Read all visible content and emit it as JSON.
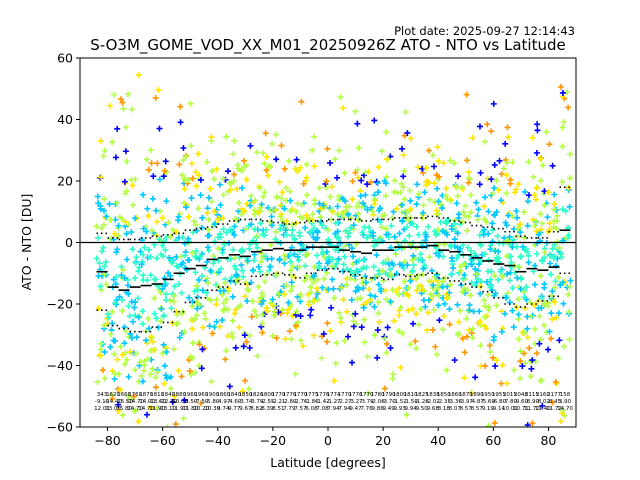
{
  "chart_data": {
    "type": "scatter",
    "title": "S-O3M_GOME_VOD_XX_M01_20250926Z ATO - NTO vs Latitude",
    "plot_date": "Plot date: 2025-09-27 12:14:43",
    "xlabel": "Latitude [degrees]",
    "ylabel": "ATO - NTO [DU]",
    "xlim": [
      -90,
      90
    ],
    "ylim": [
      -60,
      60
    ],
    "xticks": [
      -80,
      -60,
      -40,
      -20,
      0,
      20,
      40,
      60,
      80
    ],
    "yticks": [
      -60,
      -40,
      -20,
      0,
      20,
      40,
      60
    ],
    "zero_line": 0,
    "colors": {
      "very_dense": "#0000ff",
      "dense": "#00c8ff",
      "medium": "#2dffc8",
      "light": "#b4ff46",
      "sparse": "#ffe600",
      "outlier": "#ff9600",
      "median": "#000000",
      "axis": "#000000"
    },
    "bins": {
      "lat": [
        -84,
        -80,
        -76,
        -72,
        -68,
        -64,
        -60,
        -56,
        -52,
        -48,
        -44,
        -40,
        -36,
        -32,
        -28,
        -24,
        -20,
        -16,
        -12,
        -8,
        -4,
        0,
        4,
        8,
        12,
        16,
        20,
        24,
        28,
        32,
        36,
        40,
        44,
        48,
        52,
        56,
        60,
        64,
        68,
        72,
        76,
        80,
        84,
        88
      ],
      "median": [
        -9.5,
        -14.5,
        -15.5,
        -14.5,
        -14,
        -13.5,
        -12,
        -10,
        -8.5,
        -7.5,
        -5.5,
        -5,
        -4,
        -4.5,
        -3,
        -2.5,
        -2,
        -2.5,
        -2.5,
        -1.5,
        -1.5,
        -1.5,
        -2.5,
        -3,
        -3.5,
        -2.5,
        -2.5,
        -1.5,
        -1.5,
        -1.5,
        -1,
        -2.5,
        -3,
        -4,
        -5,
        -6,
        -7,
        -7.5,
        -9.5,
        -8.5,
        -9,
        -8,
        4
      ],
      "p_low": [
        -22,
        -27,
        -28,
        -29,
        -29,
        -27.5,
        -26,
        -22.5,
        -19.5,
        -18,
        -15.5,
        -14.5,
        -12.5,
        -13.5,
        -11,
        -10.5,
        -10,
        -10.5,
        -11.5,
        -10,
        -9,
        -8.5,
        -9.5,
        -10.5,
        -11.5,
        -11.5,
        -12,
        -10.5,
        -11,
        -10.5,
        -10,
        -11.5,
        -12.5,
        -13.5,
        -14.5,
        -16,
        -18,
        -20,
        -21,
        -20,
        -19,
        -17.5,
        -10
      ],
      "p_high": [
        3,
        1.5,
        1,
        1,
        1.5,
        2,
        2.5,
        3,
        4,
        4.5,
        5,
        6,
        7,
        7.5,
        7.5,
        7,
        6.5,
        6,
        6.5,
        7,
        7,
        7.5,
        7.5,
        7.5,
        7,
        7.5,
        7.5,
        8,
        8,
        8,
        8.5,
        8,
        7,
        6.5,
        5.5,
        5,
        4.5,
        3.5,
        2,
        1.5,
        1.5,
        3.5,
        18
      ],
      "count": [
        "343",
        "1620",
        "1660",
        "1760",
        "1870",
        "1810",
        "1840",
        "1880",
        "1960",
        "1960",
        "1900",
        "1860",
        "1840",
        "1850",
        "1826",
        "1800",
        "1770",
        "1776",
        "1770",
        "1775",
        "1776",
        "1774",
        "1770",
        "1776",
        "1770",
        "1780",
        "1790",
        "1800",
        "1810",
        "1825",
        "1838",
        "1850",
        "1860",
        "1870",
        "1890",
        "1950",
        "1955",
        "2015",
        "2048",
        "2115",
        "2160",
        "2177",
        "158"
      ],
      "mean": [
        "-9.10",
        "-14.40",
        "-15.50",
        "-14.70",
        "-14.00",
        "-13.60",
        "-12.30",
        "-10.00",
        "-8.50",
        "-7.50",
        "-5.80",
        "-4.97",
        "-4.60",
        "-3.74",
        "-3.79",
        "-2.55",
        "-2.21",
        "-2.80",
        "-2.76",
        "-1.86",
        "-1.42",
        "-1.27",
        "-2.27",
        "-3.27",
        "-3.79",
        "-2.06",
        "-3.70",
        "-1.52",
        "-1.59",
        "-1.28",
        "-2.02",
        "-2.35",
        "-3.36",
        "-3.97",
        "-4.87",
        "-5.69",
        "-6.80",
        "-7.80",
        "-9.60",
        "-8.90",
        "-8.02",
        "-8.45",
        "3.90"
      ],
      "std": [
        "12.01",
        "13.05",
        "15.80",
        "14.70",
        "14.70",
        "11.90",
        "13.10",
        "11.90",
        "11.80",
        "10.20",
        "10.30",
        "9.74",
        "9.77",
        "9.67",
        "8.82",
        "8.39",
        "8.51",
        "7.79",
        "7.57",
        "6.08",
        "7.08",
        "7.94",
        "7.94",
        "9.47",
        "7.76",
        "9.86",
        "9.49",
        "9.93",
        "9.94",
        "9.50",
        "9.68",
        "8.18",
        "8.07",
        "8.57",
        "8.57",
        "9.19",
        "9.14",
        "10.01",
        "10.71",
        "11.70",
        "11.40",
        "11.72",
        "14.70"
      ]
    }
  }
}
